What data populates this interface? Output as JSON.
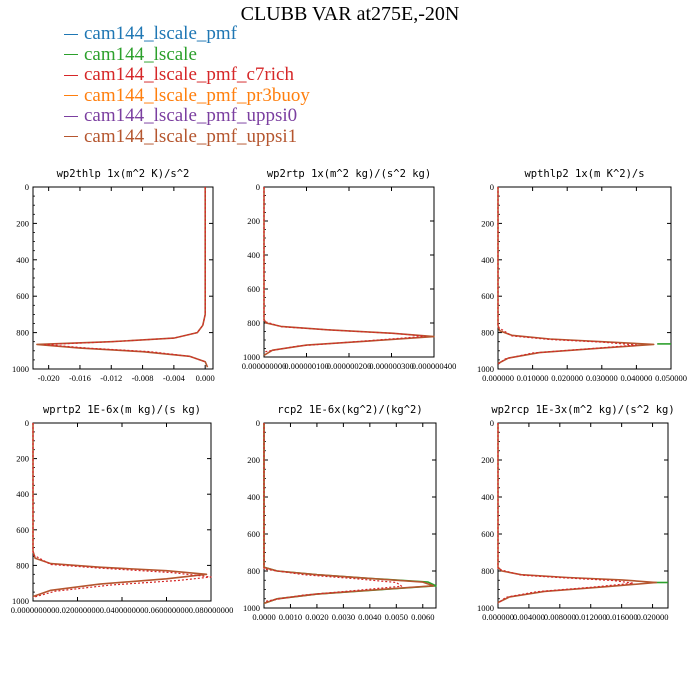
{
  "title": "CLUBB VAR at275E,-20N",
  "legend": [
    {
      "label": "cam144_lscale_pmf",
      "color": "#1f77b4"
    },
    {
      "label": "cam144_lscale",
      "color": "#2ca02c"
    },
    {
      "label": "cam144_lscale_pmf_c7rich",
      "color": "#d62728"
    },
    {
      "label": "cam144_lscale_pmf_pr3buoy",
      "color": "#ff7f0e"
    },
    {
      "label": "cam144_lscale_pmf_uppsi0",
      "color": "#7b3fa0"
    },
    {
      "label": "cam144_lscale_pmf_uppsi1",
      "color": "#b5562f"
    }
  ],
  "chart_data": [
    {
      "type": "line",
      "title": "wp2thlp  1x(m^2 K)/s^2",
      "xlim": [
        -0.022,
        0.001
      ],
      "ylim": [
        1000,
        0
      ],
      "xticks": [
        -0.02,
        -0.016,
        -0.012,
        -0.008,
        -0.004,
        0.0
      ],
      "xtick_labels": [
        "-0.020",
        "-0.016",
        "-0.012",
        "-0.008",
        "-0.004",
        "0.000"
      ],
      "yticks": [
        0,
        200,
        400,
        600,
        800,
        1000
      ],
      "ytick_labels": [
        "0",
        "200",
        "400",
        "600",
        "800",
        "1000"
      ],
      "series": [
        {
          "color": "#b5562f",
          "x": [
            0.0,
            0.0,
            0.0,
            0.0,
            -0.0003,
            -0.001,
            -0.004,
            -0.012,
            -0.0215,
            -0.016,
            -0.008,
            -0.002,
            0.0,
            0.0003
          ],
          "y": [
            0,
            200,
            500,
            700,
            760,
            800,
            830,
            850,
            865,
            885,
            905,
            930,
            960,
            990
          ]
        },
        {
          "color": "#d62728",
          "dashed": true,
          "x": [
            0.0,
            0.0,
            0.0,
            -0.0003,
            -0.001,
            -0.004,
            -0.012,
            -0.0205,
            -0.015,
            -0.007,
            -0.002,
            0.0
          ],
          "y": [
            0,
            300,
            700,
            760,
            800,
            830,
            850,
            866,
            885,
            905,
            930,
            960
          ]
        }
      ]
    },
    {
      "type": "line",
      "title": "wp2rtp  1x(m^2 kg)/(s^2 kg)",
      "xlim": [
        0,
        4e-07
      ],
      "ylim": [
        1000,
        0
      ],
      "xticks": [
        0,
        1e-07,
        2e-07,
        3e-07,
        4e-07
      ],
      "xtick_labels": [
        "0.000000000",
        "0.000000100",
        "0.000000200",
        "0.000000300",
        "0.000000400"
      ],
      "yticks": [
        0,
        200,
        400,
        600,
        800,
        1000
      ],
      "ytick_labels": [
        "0",
        "200",
        "400",
        "600",
        "800",
        "1000"
      ],
      "series": [
        {
          "color": "#b5562f",
          "x": [
            0,
            0,
            0,
            5e-09,
            4e-08,
            1.5e-07,
            3e-07,
            4e-07,
            2.5e-07,
            1e-07,
            2e-08,
            0
          ],
          "y": [
            0,
            400,
            780,
            800,
            820,
            840,
            860,
            880,
            905,
            930,
            960,
            990
          ]
        },
        {
          "color": "#d62728",
          "dashed": true,
          "x": [
            0,
            0,
            4e-08,
            1.6e-07,
            3.1e-07,
            3.8e-07,
            2.4e-07,
            8e-08,
            0
          ],
          "y": [
            0,
            790,
            822,
            842,
            862,
            878,
            905,
            935,
            970
          ]
        }
      ]
    },
    {
      "type": "line",
      "title": "wpthlp2  1x(m K^2)/s",
      "xlim": [
        0,
        0.05
      ],
      "ylim": [
        1000,
        0
      ],
      "xticks": [
        0,
        0.01,
        0.02,
        0.03,
        0.04,
        0.05
      ],
      "xtick_labels": [
        "0.000000",
        "0.010000",
        "0.020000",
        "0.030000",
        "0.040000",
        "0.050000"
      ],
      "yticks": [
        0,
        200,
        400,
        600,
        800,
        1000
      ],
      "ytick_labels": [
        "0",
        "200",
        "400",
        "600",
        "800",
        "1000"
      ],
      "series": [
        {
          "color": "#2ca02c",
          "x": [
            0.046,
            0.05
          ],
          "y": [
            862,
            862
          ]
        },
        {
          "color": "#b5562f",
          "x": [
            0,
            0,
            0.0005,
            0.004,
            0.015,
            0.03,
            0.045,
            0.03,
            0.012,
            0.003,
            0
          ],
          "y": [
            0,
            760,
            790,
            815,
            835,
            850,
            865,
            885,
            910,
            940,
            970
          ]
        },
        {
          "color": "#d62728",
          "dashed": true,
          "x": [
            0,
            0,
            0.004,
            0.015,
            0.03,
            0.04,
            0.027,
            0.01,
            0.002,
            0
          ],
          "y": [
            0,
            770,
            818,
            838,
            852,
            868,
            888,
            912,
            945,
            975
          ]
        }
      ]
    },
    {
      "type": "line",
      "title": "wprtp2  1E-6x(m kg)/(s kg)",
      "xlim": [
        0,
        0.08
      ],
      "ylim": [
        1000,
        0
      ],
      "xticks": [
        0,
        0.02,
        0.04,
        0.06,
        0.08
      ],
      "xtick_labels": [
        "0.000000000",
        "0.020000000",
        "0.040000000",
        "0.060000000",
        "0.080000000"
      ],
      "yticks": [
        0,
        200,
        400,
        600,
        800,
        1000
      ],
      "ytick_labels": [
        "0",
        "200",
        "400",
        "600",
        "800",
        "1000"
      ],
      "series": [
        {
          "color": "#b5562f",
          "x": [
            0,
            0,
            0.001,
            0.008,
            0.03,
            0.06,
            0.078,
            0.06,
            0.03,
            0.008,
            0
          ],
          "y": [
            0,
            720,
            760,
            790,
            810,
            830,
            850,
            875,
            905,
            940,
            975
          ]
        },
        {
          "color": "#d62728",
          "dashed": true,
          "x": [
            0,
            0,
            0.008,
            0.03,
            0.062,
            0.08,
            0.065,
            0.035,
            0.01,
            0
          ],
          "y": [
            0,
            740,
            795,
            815,
            840,
            865,
            885,
            910,
            945,
            980
          ]
        }
      ]
    },
    {
      "type": "line",
      "title": "rcp2  1E-6x(kg^2)/(kg^2)",
      "xlim": [
        0,
        0.0065
      ],
      "ylim": [
        1000,
        0
      ],
      "xticks": [
        0,
        0.001,
        0.002,
        0.003,
        0.004,
        0.005,
        0.006
      ],
      "xtick_labels": [
        "0.0000",
        "0.0010",
        "0.0020",
        "0.0030",
        "0.0040",
        "0.0050",
        "0.0060"
      ],
      "yticks": [
        0,
        200,
        400,
        600,
        800,
        1000
      ],
      "ytick_labels": [
        "0",
        "200",
        "400",
        "600",
        "800",
        "1000"
      ],
      "series": [
        {
          "color": "#2ca02c",
          "x": [
            0,
            0,
            0.0005,
            0.002,
            0.004,
            0.0062,
            0.0065,
            0.0045,
            0.002,
            0.0005,
            0
          ],
          "y": [
            0,
            780,
            800,
            820,
            840,
            860,
            880,
            900,
            925,
            950,
            975
          ]
        },
        {
          "color": "#b5562f",
          "x": [
            0,
            0,
            0.0005,
            0.002,
            0.004,
            0.006,
            0.0064,
            0.0044,
            0.002,
            0.0005,
            0
          ],
          "y": [
            0,
            780,
            800,
            820,
            840,
            860,
            880,
            900,
            925,
            950,
            975
          ]
        },
        {
          "color": "#d62728",
          "dashed": true,
          "x": [
            0,
            0,
            0.0015,
            0.0035,
            0.005,
            0.0052,
            0.0035,
            0.0015,
            0
          ],
          "y": [
            0,
            790,
            820,
            842,
            862,
            882,
            905,
            930,
            965
          ]
        }
      ]
    },
    {
      "type": "line",
      "title": "wp2rcp  1E-3x(m^2 kg)/(s^2 kg)",
      "xlim": [
        0,
        0.022
      ],
      "ylim": [
        1000,
        0
      ],
      "xticks": [
        0,
        0.004,
        0.008,
        0.012,
        0.016,
        0.02
      ],
      "xtick_labels": [
        "0.000000",
        "0.004000",
        "0.008000",
        "0.012000",
        "0.016000",
        "0.020000"
      ],
      "yticks": [
        0,
        200,
        400,
        600,
        800,
        1000
      ],
      "ytick_labels": [
        "0",
        "200",
        "400",
        "600",
        "800",
        "1000"
      ],
      "series": [
        {
          "color": "#2ca02c",
          "x": [
            0.02,
            0.022
          ],
          "y": [
            862,
            862
          ]
        },
        {
          "color": "#b5562f",
          "x": [
            0,
            0,
            0.0005,
            0.003,
            0.009,
            0.016,
            0.0205,
            0.014,
            0.006,
            0.0015,
            0
          ],
          "y": [
            0,
            780,
            800,
            820,
            835,
            848,
            862,
            885,
            910,
            940,
            970
          ]
        },
        {
          "color": "#d62728",
          "dashed": true,
          "x": [
            0,
            0,
            0.003,
            0.009,
            0.015,
            0.0175,
            0.012,
            0.005,
            0.001,
            0
          ],
          "y": [
            0,
            790,
            822,
            838,
            852,
            866,
            888,
            912,
            942,
            975
          ]
        }
      ]
    }
  ]
}
